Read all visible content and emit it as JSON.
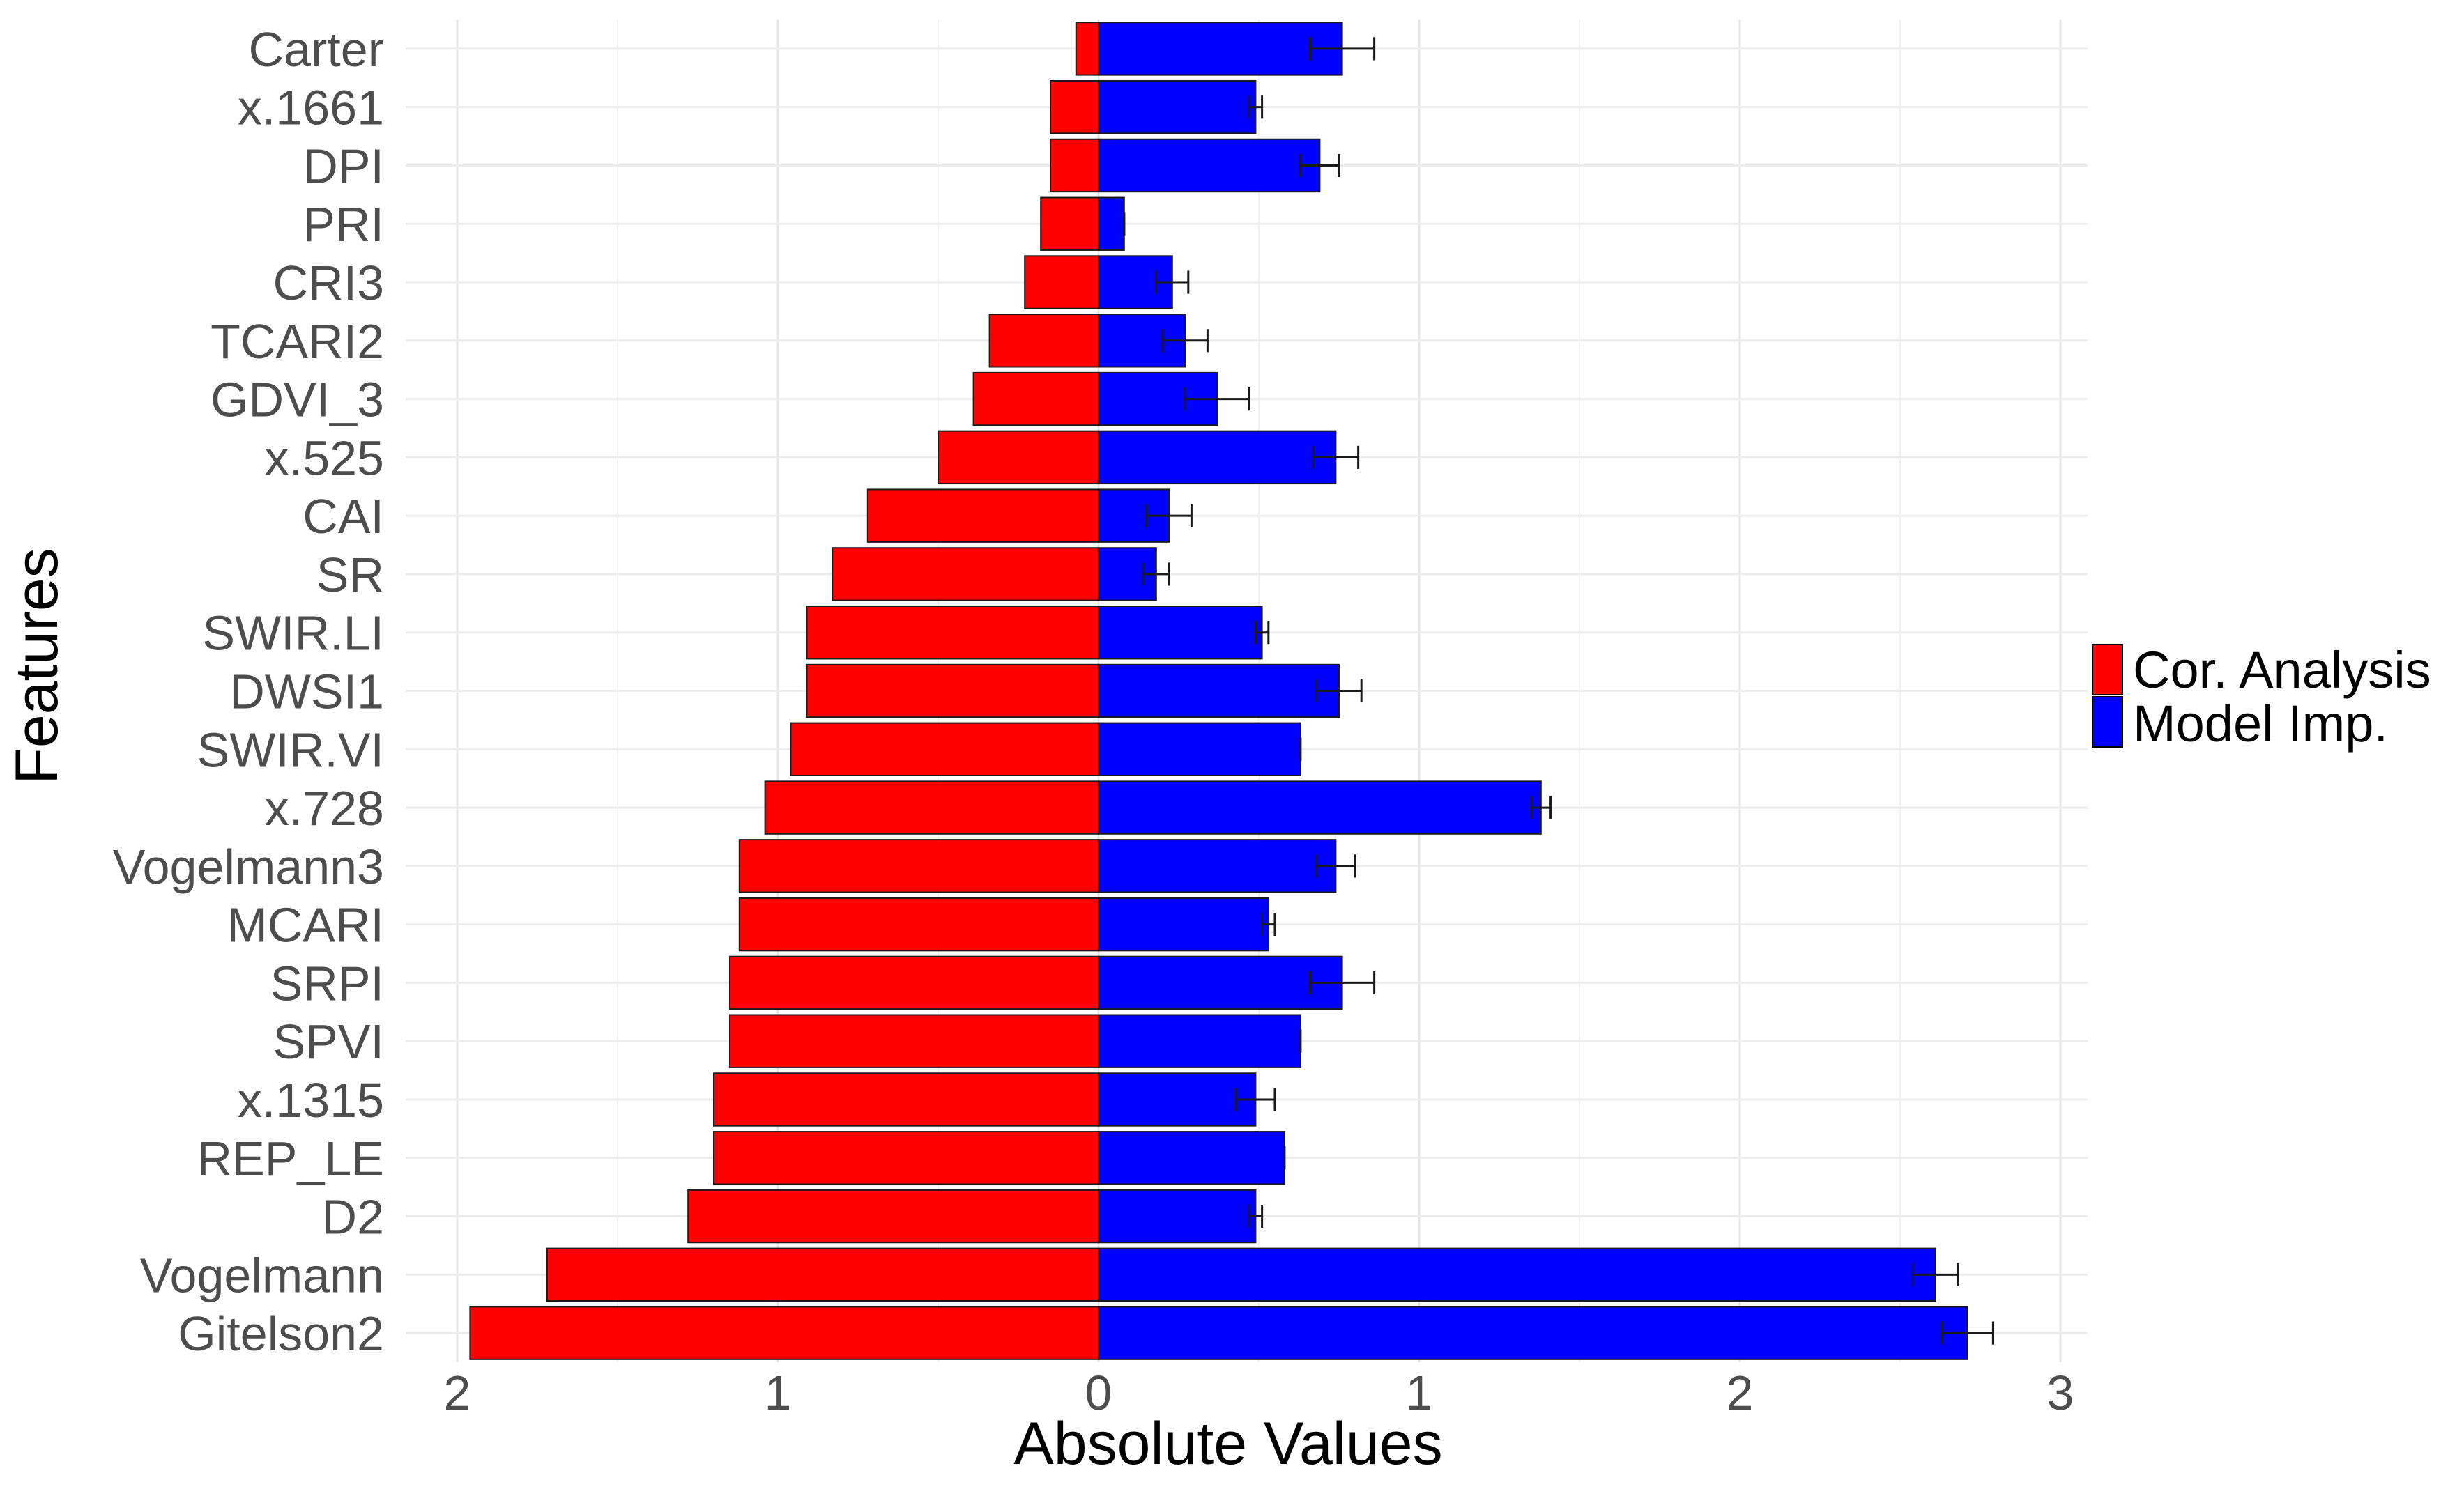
{
  "chart_data": {
    "type": "bar",
    "orientation": "horizontal-diverging",
    "xlabel": "Absolute Values",
    "ylabel": "Features",
    "xlim": [
      -2.0,
      3.0
    ],
    "x_ticks": [
      -2,
      -1,
      0,
      1,
      2,
      3
    ],
    "x_tick_labels": [
      "2",
      "1",
      "0",
      "1",
      "2",
      "3"
    ],
    "grid": true,
    "legend_position": "right",
    "categories": [
      "Carter",
      "x.1661",
      "DPI",
      "PRI",
      "CRI3",
      "TCARI2",
      "GDVI_3",
      "x.525",
      "CAI",
      "SR",
      "SWIR.LI",
      "DWSI1",
      "SWIR.VI",
      "x.728",
      "Vogelmann3",
      "MCARI",
      "SRPI",
      "SPVI",
      "x.1315",
      "REP_LE",
      "D2",
      "Vogelmann",
      "Gitelson2"
    ],
    "series": [
      {
        "name": "Cor. Analysis",
        "color": "#ff0000",
        "direction": "left",
        "values": [
          0.07,
          0.15,
          0.15,
          0.18,
          0.23,
          0.34,
          0.39,
          0.5,
          0.72,
          0.83,
          0.91,
          0.91,
          0.96,
          1.04,
          1.12,
          1.12,
          1.15,
          1.15,
          1.2,
          1.2,
          1.28,
          1.72,
          1.96
        ]
      },
      {
        "name": "Model Imp.",
        "color": "#0000ff",
        "direction": "right",
        "values": [
          0.76,
          0.49,
          0.69,
          0.08,
          0.23,
          0.27,
          0.37,
          0.74,
          0.22,
          0.18,
          0.51,
          0.75,
          0.63,
          1.38,
          0.74,
          0.53,
          0.76,
          0.63,
          0.49,
          0.58,
          0.49,
          2.61,
          2.71
        ],
        "errors": [
          0.1,
          0.02,
          0.06,
          0.0,
          0.05,
          0.07,
          0.1,
          0.07,
          0.07,
          0.04,
          0.02,
          0.07,
          0.0,
          0.03,
          0.06,
          0.02,
          0.1,
          0.0,
          0.06,
          0.0,
          0.02,
          0.07,
          0.08
        ]
      }
    ]
  }
}
